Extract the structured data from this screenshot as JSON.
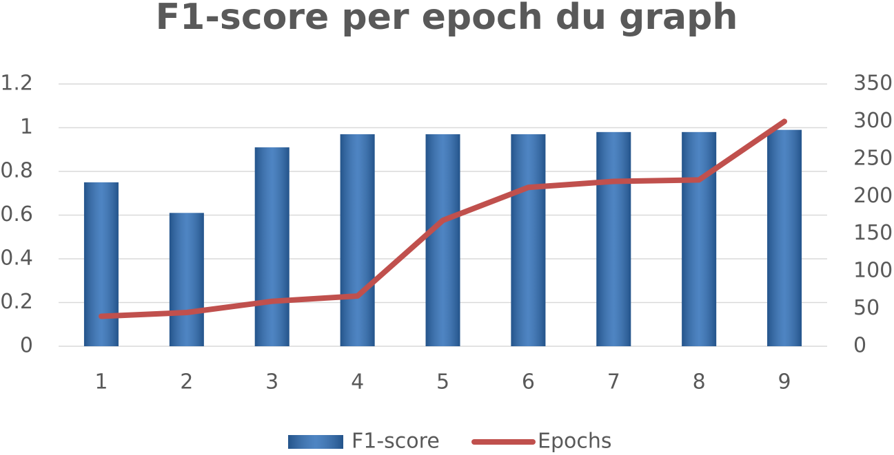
{
  "chart_data": {
    "type": "bar-line",
    "title": "F1-score per epoch du graph",
    "categories": [
      "1",
      "2",
      "3",
      "4",
      "5",
      "6",
      "7",
      "8",
      "9"
    ],
    "series": [
      {
        "name": "F1-score",
        "type": "bar",
        "color": "#2f6fb8",
        "values": [
          0.75,
          0.61,
          0.91,
          0.97,
          0.97,
          0.97,
          0.98,
          0.98,
          0.99
        ]
      },
      {
        "name": "Epochs",
        "type": "line",
        "axis": "y2",
        "color": "#c0504d",
        "values": [
          40,
          45,
          60,
          67,
          168,
          212,
          220,
          222,
          300
        ]
      }
    ],
    "ylim": [
      0,
      1.2
    ],
    "yticks": [
      0,
      0.2,
      0.4,
      0.6,
      0.8,
      1,
      1.2
    ],
    "y2lim": [
      0,
      350
    ],
    "y2ticks": [
      0,
      50,
      100,
      150,
      200,
      250,
      300,
      350
    ],
    "grid": true,
    "legend": "bottom"
  }
}
